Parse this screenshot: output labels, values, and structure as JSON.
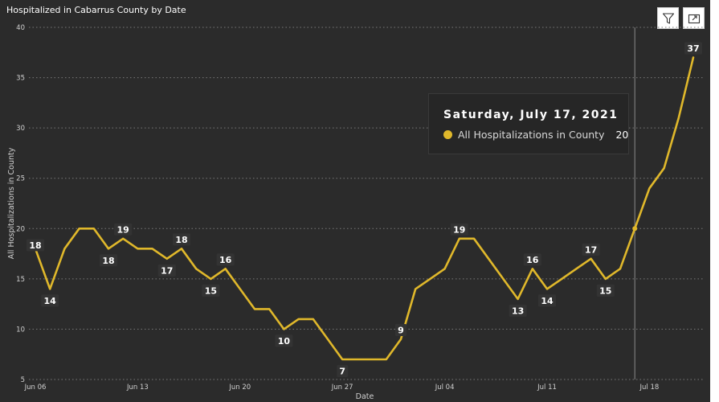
{
  "chart_data": {
    "type": "line",
    "title": "Hospitalized in Cabarrus County by Date",
    "xlabel": "Date",
    "ylabel": "All Hospitalizations in County",
    "ylim": [
      5,
      40
    ],
    "yticks": [
      5,
      10,
      15,
      20,
      25,
      30,
      35,
      40
    ],
    "xticks": [
      {
        "date": "2021-06-06",
        "label": "Jun 06"
      },
      {
        "date": "2021-06-13",
        "label": "Jun 13"
      },
      {
        "date": "2021-06-20",
        "label": "Jun 20"
      },
      {
        "date": "2021-06-27",
        "label": "Jun 27"
      },
      {
        "date": "2021-07-04",
        "label": "Jul 04"
      },
      {
        "date": "2021-07-11",
        "label": "Jul 11"
      },
      {
        "date": "2021-07-18",
        "label": "Jul 18"
      }
    ],
    "grid": true,
    "line_color": "#e0b82b",
    "series": [
      {
        "name": "All Hospitalizations in County",
        "points": [
          {
            "x": "2021-06-06",
            "y": 18,
            "label": "18"
          },
          {
            "x": "2021-06-07",
            "y": 14,
            "label": "14"
          },
          {
            "x": "2021-06-08",
            "y": 18
          },
          {
            "x": "2021-06-09",
            "y": 20
          },
          {
            "x": "2021-06-10",
            "y": 20
          },
          {
            "x": "2021-06-11",
            "y": 18,
            "label": "18"
          },
          {
            "x": "2021-06-12",
            "y": 19,
            "label": "19"
          },
          {
            "x": "2021-06-13",
            "y": 18
          },
          {
            "x": "2021-06-14",
            "y": 18
          },
          {
            "x": "2021-06-15",
            "y": 17,
            "label": "17"
          },
          {
            "x": "2021-06-16",
            "y": 18,
            "label": "18"
          },
          {
            "x": "2021-06-17",
            "y": 16
          },
          {
            "x": "2021-06-18",
            "y": 15,
            "label": "15"
          },
          {
            "x": "2021-06-19",
            "y": 16,
            "label": "16"
          },
          {
            "x": "2021-06-20",
            "y": 14
          },
          {
            "x": "2021-06-21",
            "y": 12
          },
          {
            "x": "2021-06-22",
            "y": 12
          },
          {
            "x": "2021-06-23",
            "y": 10,
            "label": "10"
          },
          {
            "x": "2021-06-24",
            "y": 11
          },
          {
            "x": "2021-06-25",
            "y": 11
          },
          {
            "x": "2021-06-26",
            "y": 9
          },
          {
            "x": "2021-06-27",
            "y": 7,
            "label": "7"
          },
          {
            "x": "2021-06-28",
            "y": 7
          },
          {
            "x": "2021-06-29",
            "y": 7
          },
          {
            "x": "2021-06-30",
            "y": 7
          },
          {
            "x": "2021-07-01",
            "y": 9,
            "label": "9"
          },
          {
            "x": "2021-07-02",
            "y": 14
          },
          {
            "x": "2021-07-03",
            "y": 15
          },
          {
            "x": "2021-07-04",
            "y": 16
          },
          {
            "x": "2021-07-05",
            "y": 19,
            "label": "19"
          },
          {
            "x": "2021-07-06",
            "y": 19
          },
          {
            "x": "2021-07-07",
            "y": 17
          },
          {
            "x": "2021-07-08",
            "y": 15
          },
          {
            "x": "2021-07-09",
            "y": 13,
            "label": "13"
          },
          {
            "x": "2021-07-10",
            "y": 16,
            "label": "16"
          },
          {
            "x": "2021-07-11",
            "y": 14,
            "label": "14"
          },
          {
            "x": "2021-07-12",
            "y": 15
          },
          {
            "x": "2021-07-13",
            "y": 16
          },
          {
            "x": "2021-07-14",
            "y": 17,
            "label": "17"
          },
          {
            "x": "2021-07-15",
            "y": 15,
            "label": "15"
          },
          {
            "x": "2021-07-16",
            "y": 16
          },
          {
            "x": "2021-07-17",
            "y": 20
          },
          {
            "x": "2021-07-18",
            "y": 24
          },
          {
            "x": "2021-07-19",
            "y": 26
          },
          {
            "x": "2021-07-20",
            "y": 31
          },
          {
            "x": "2021-07-21",
            "y": 37,
            "label": "37"
          }
        ]
      }
    ],
    "hover": {
      "x": "2021-07-17"
    }
  },
  "tooltip": {
    "date": "Saturday, July 17, 2021",
    "series_label": "All Hospitalizations in County",
    "value": "20"
  },
  "header": {
    "filter_icon": "filter-icon",
    "focus_icon": "focus-mode-icon"
  }
}
